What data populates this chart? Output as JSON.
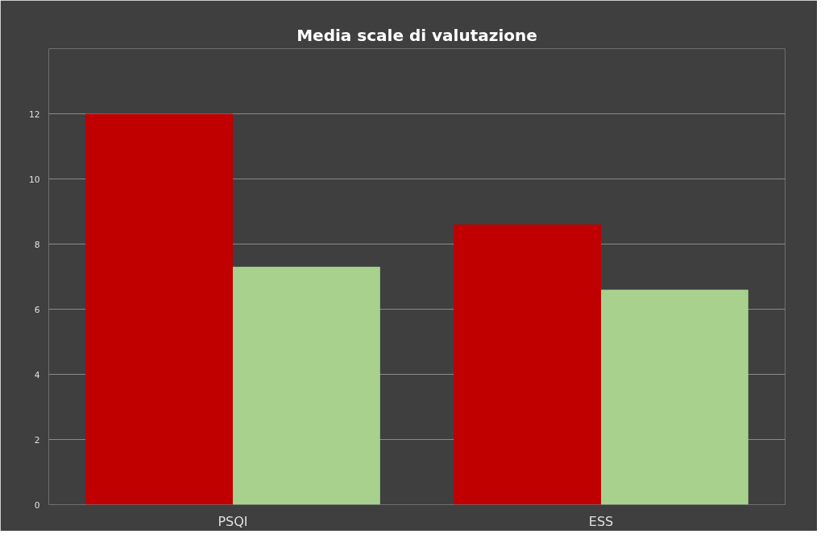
{
  "chart_data": {
    "type": "bar",
    "title": "Media scale di valutazione",
    "categories": [
      "PSQI",
      "ESS"
    ],
    "series": [
      {
        "color": "#c00000",
        "values": [
          12.0,
          8.6
        ]
      },
      {
        "color": "#a9d18e",
        "values": [
          7.3,
          6.6
        ]
      }
    ],
    "ylim": [
      0,
      14
    ],
    "yticks": [
      0,
      2,
      4,
      6,
      8,
      10,
      12,
      {
        "value": 14,
        "label": null
      }
    ],
    "grid": "y"
  }
}
